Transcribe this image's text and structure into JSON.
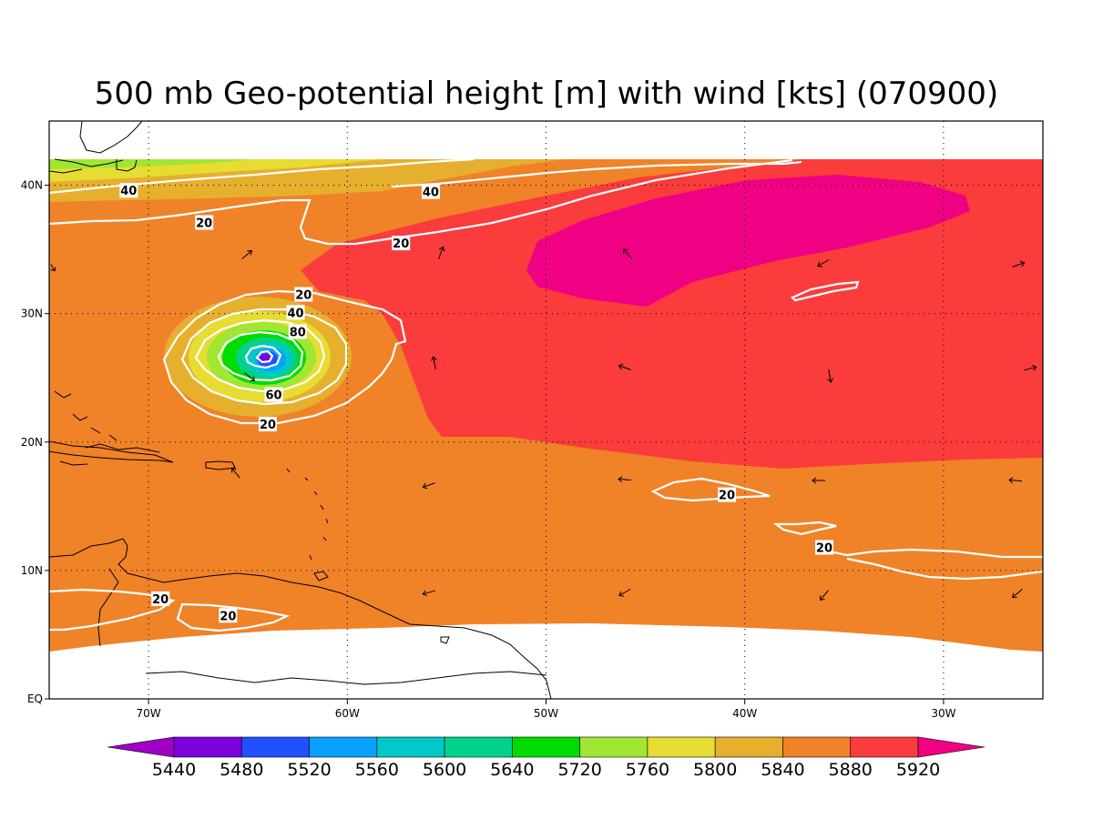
{
  "title": "500 mb Geo-potential height [m] with wind [kts] (070900)",
  "map": {
    "lon_range": [
      -75,
      -25
    ],
    "lat_range": [
      0,
      45
    ],
    "lon_ticks": [
      {
        "lon": -70,
        "label": "70W"
      },
      {
        "lon": -60,
        "label": "60W"
      },
      {
        "lon": -50,
        "label": "50W"
      },
      {
        "lon": -40,
        "label": "40W"
      },
      {
        "lon": -30,
        "label": "30W"
      }
    ],
    "lat_ticks": [
      {
        "lat": 0,
        "label": "EQ"
      },
      {
        "lat": 10,
        "label": "10N"
      },
      {
        "lat": 20,
        "label": "20N"
      },
      {
        "lat": 30,
        "label": "30N"
      },
      {
        "lat": 40,
        "label": "40N"
      }
    ]
  },
  "colorbar": {
    "levels": [
      "5440",
      "5480",
      "5520",
      "5560",
      "5600",
      "5640",
      "5720",
      "5760",
      "5800",
      "5840",
      "5880",
      "5920"
    ],
    "colors": [
      "#9f00c5",
      "#7b00dc",
      "#2050ff",
      "#0aa0ff",
      "#00c8c8",
      "#00d28c",
      "#00dc00",
      "#a0e632",
      "#e6dc32",
      "#e6af2d",
      "#f08228",
      "#fa3c3c",
      "#f00082"
    ]
  },
  "wind_labels": [
    {
      "lon": -71.0,
      "lat": 39.6,
      "text": "40"
    },
    {
      "lon": -67.2,
      "lat": 37.1,
      "text": "20"
    },
    {
      "lon": -55.8,
      "lat": 39.5,
      "text": "40"
    },
    {
      "lon": -57.3,
      "lat": 35.5,
      "text": "20"
    },
    {
      "lon": -62.2,
      "lat": 31.5,
      "text": "20"
    },
    {
      "lon": -62.6,
      "lat": 30.1,
      "text": "40"
    },
    {
      "lon": -62.5,
      "lat": 28.6,
      "text": "80"
    },
    {
      "lon": -63.7,
      "lat": 23.7,
      "text": "60"
    },
    {
      "lon": -64.0,
      "lat": 21.4,
      "text": "20"
    },
    {
      "lon": -69.4,
      "lat": 7.8,
      "text": "20"
    },
    {
      "lon": -66.0,
      "lat": 6.5,
      "text": "20"
    },
    {
      "lon": -40.9,
      "lat": 15.9,
      "text": "20"
    },
    {
      "lon": -36.0,
      "lat": 11.8,
      "text": "20"
    }
  ]
}
